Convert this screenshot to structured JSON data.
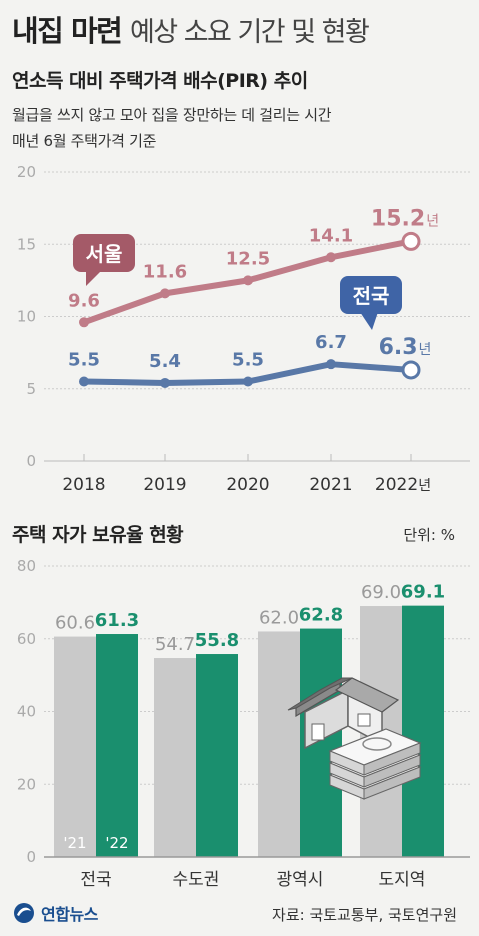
{
  "header": {
    "title_bold": "내집 마련",
    "title_light": "예상 소요 기간 및 현황"
  },
  "colors": {
    "seoul": "#c07c88",
    "national": "#5978a7",
    "seoul_label_bg": "#a45a68",
    "national_label_bg": "#3f64a6",
    "bar_2021": "#c9c9c9",
    "bar_2022": "#1a8f6e",
    "value_2021": "#9a9a9a",
    "value_2022": "#1a8f6e",
    "grid": "#cccccc",
    "axis_text": "#aaaaaa"
  },
  "chart_data": [
    {
      "type": "line",
      "title": "연소득 대비 주택가격 배수(PIR) 추이",
      "subtitle_lines": [
        "월급을 쓰지 않고 모아 집을 장만하는 데 걸리는 시간",
        "매년 6월 주택가격 기준"
      ],
      "x": [
        "2018",
        "2019",
        "2020",
        "2021",
        "2022"
      ],
      "x_unit": "년",
      "ylim": [
        0,
        20
      ],
      "yticks": [
        "0",
        "5",
        "10",
        "15",
        "20"
      ],
      "grid": true,
      "series": [
        {
          "name": "서울",
          "values": [
            9.6,
            11.6,
            12.5,
            14.1,
            15.2
          ],
          "labels": [
            "9.6",
            "11.6",
            "12.5",
            "14.1",
            "15.2"
          ],
          "last_suffix": "년"
        },
        {
          "name": "전국",
          "values": [
            5.5,
            5.4,
            5.5,
            6.7,
            6.3
          ],
          "labels": [
            "5.5",
            "5.4",
            "5.5",
            "6.7",
            "6.3"
          ],
          "last_suffix": "년"
        }
      ]
    },
    {
      "type": "bar",
      "title": "주택 자가 보유율 현황",
      "unit_label": "단위: %",
      "categories": [
        "전국",
        "수도권",
        "광역시",
        "도지역"
      ],
      "ylim": [
        0,
        80
      ],
      "yticks": [
        "0",
        "20",
        "40",
        "60",
        "80"
      ],
      "grid": true,
      "series": [
        {
          "name": "'21",
          "values": [
            60.6,
            54.7,
            62.0,
            69.0
          ],
          "labels": [
            "60.6",
            "54.7",
            "62.0",
            "69.0"
          ]
        },
        {
          "name": "'22",
          "values": [
            61.3,
            55.8,
            62.8,
            69.1
          ],
          "labels": [
            "61.3",
            "55.8",
            "62.8",
            "69.1"
          ]
        }
      ]
    }
  ],
  "footer": {
    "logo_text": "연합뉴스",
    "source": "자료: 국토교통부, 국토연구원"
  }
}
